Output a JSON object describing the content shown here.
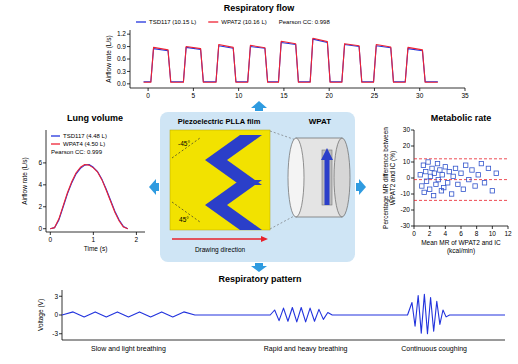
{
  "chart_data": [
    {
      "type": "line",
      "title": "Respiratory flow",
      "ylabel": "Airflow rate (L/s)",
      "x": [
        -0.5,
        0.3,
        0.6,
        2.2,
        2.5,
        3.9,
        4.2,
        5.8,
        6.1,
        7.5,
        7.8,
        9.4,
        9.7,
        11.0,
        11.3,
        12.9,
        13.2,
        14.4,
        14.7,
        16.3,
        16.6,
        17.9,
        18.2,
        19.8,
        20.1,
        21.4,
        21.7,
        23.3,
        23.6,
        24.9,
        25.2,
        26.8,
        27.1,
        28.4,
        28.7,
        30.3,
        30.6,
        32
      ],
      "xlim": [
        -2,
        35
      ],
      "xticks": [
        0,
        5,
        10,
        15,
        20,
        25,
        30,
        35
      ],
      "ylim": [
        -0.1,
        1.3
      ],
      "yticks": [
        {
          "value": 0,
          "label": "0.0"
        },
        0.3,
        0.6,
        0.9,
        1.2
      ],
      "legend": "top",
      "annotation": "Pearson CC: 0.998",
      "series": [
        {
          "name": "TSD117 (10.15 L)",
          "color": "#2233dd",
          "values": [
            0.05,
            0.05,
            0.85,
            0.8,
            0.05,
            0.05,
            0.88,
            0.83,
            0.05,
            0.05,
            0.92,
            0.86,
            0.05,
            0.05,
            0.9,
            0.86,
            0.05,
            0.05,
            1.0,
            0.95,
            0.05,
            0.05,
            1.08,
            1.0,
            0.05,
            0.05,
            0.95,
            0.9,
            0.05,
            0.05,
            0.92,
            0.87,
            0.05,
            0.05,
            0.85,
            0.8,
            0.05,
            0.05
          ]
        },
        {
          "name": "WPAT2 (10.16 L)",
          "color": "#ee2233",
          "values": [
            0.04,
            0.04,
            0.88,
            0.82,
            0.04,
            0.04,
            0.9,
            0.85,
            0.04,
            0.04,
            0.95,
            0.88,
            0.04,
            0.04,
            0.93,
            0.87,
            0.04,
            0.04,
            1.03,
            0.97,
            0.04,
            0.04,
            1.1,
            1.02,
            0.04,
            0.04,
            0.97,
            0.92,
            0.04,
            0.04,
            0.95,
            0.89,
            0.04,
            0.04,
            0.88,
            0.82,
            0.04,
            0.04
          ]
        }
      ]
    },
    {
      "type": "line",
      "title": "Lung volume",
      "xlabel": "Time (s)",
      "ylabel": "Airflow rate (L/s)",
      "x": [
        0,
        0.1,
        0.2,
        0.3,
        0.4,
        0.5,
        0.6,
        0.7,
        0.8,
        0.9,
        1.0,
        1.1,
        1.2,
        1.3,
        1.4,
        1.5,
        1.6,
        1.7,
        1.8
      ],
      "xlim": [
        -0.1,
        2.2
      ],
      "xticks": [
        0,
        1,
        2
      ],
      "ylim": [
        -0.3,
        9
      ],
      "yticks": [
        0,
        2,
        4,
        6
      ],
      "legend": "upper left",
      "annotation": "Pearson CC: 0.999",
      "series": [
        {
          "name": "TSD117 (4.48 L)",
          "color": "#2233dd",
          "values": [
            0,
            0.1,
            0.8,
            2.0,
            3.2,
            4.2,
            5.0,
            5.5,
            5.8,
            5.85,
            5.6,
            5.2,
            4.5,
            3.6,
            2.6,
            1.6,
            0.8,
            0.2,
            0
          ]
        },
        {
          "name": "WPAT4 (4.50 L)",
          "color": "#ee2233",
          "values": [
            0,
            0.1,
            0.9,
            2.1,
            3.3,
            4.3,
            5.1,
            5.6,
            5.85,
            5.8,
            5.55,
            5.15,
            4.45,
            3.5,
            2.5,
            1.5,
            0.7,
            0.15,
            0
          ]
        }
      ]
    },
    {
      "type": "scatter",
      "title": "Metabolic rate",
      "xlabel": "Mean MR of WPAT2 and IC (kcal/min)",
      "ylabel": "Percentage MR difference between WPAT2 and IC (%)",
      "x": [
        0.8,
        1.0,
        1.2,
        1.3,
        1.5,
        1.6,
        1.8,
        2.0,
        2.1,
        2.3,
        2.5,
        2.6,
        2.8,
        3.0,
        3.1,
        3.3,
        3.5,
        3.6,
        3.8,
        4.0,
        4.3,
        4.5,
        4.8,
        5.0,
        5.3,
        5.6,
        6.0,
        6.3,
        6.6,
        7.0,
        7.4,
        7.8,
        8.2,
        8.6,
        9.0,
        9.5,
        10.0,
        10.5
      ],
      "xlim": [
        0,
        12
      ],
      "xticks": [
        0,
        2,
        4,
        6,
        8,
        10,
        12
      ],
      "ylim": [
        -30,
        30
      ],
      "yticks": [
        -30,
        -20,
        -10,
        0,
        10,
        20,
        30
      ],
      "reference_lines": [
        12,
        -1,
        -14
      ],
      "series": [
        {
          "color": "#3355cc",
          "marker": "square",
          "values": [
            2,
            -5,
            8,
            -9,
            4,
            -2,
            10,
            -7,
            1,
            6,
            -11,
            3,
            -4,
            9,
            -1,
            5,
            -8,
            2,
            -6,
            7,
            -3,
            4,
            -10,
            1,
            6,
            -4,
            3,
            -7,
            8,
            -1,
            5,
            -5,
            2,
            9,
            -3,
            6,
            -8,
            3
          ]
        }
      ]
    },
    {
      "type": "line",
      "title": "Respiratory pattern",
      "ylabel": "Voltage (V)",
      "x": [
        0,
        2.5,
        5,
        7.5,
        10,
        12.5,
        15,
        17.5,
        20,
        22.5,
        25,
        27.5,
        30,
        35,
        40,
        45,
        47,
        48,
        49,
        50,
        51,
        52,
        53,
        54,
        55,
        56,
        57,
        58,
        59,
        60,
        61,
        70,
        78,
        79,
        79.7,
        80.4,
        81.1,
        81.8,
        82.5,
        83.2,
        83.9,
        84.6,
        85.3,
        86,
        86.7,
        87.5,
        93,
        100
      ],
      "xlim": [
        0,
        100
      ],
      "ylim": [
        -4,
        4
      ],
      "yticks": [
        -3,
        0,
        3
      ],
      "tick_labels": "y",
      "annotations": [
        {
          "text": "Slow and light breathing",
          "x": 15
        },
        {
          "text": "Rapid and heavy breathing",
          "x": 55
        },
        {
          "text": "Continuous coughing",
          "x": 84
        }
      ],
      "series": [
        {
          "color": "#2233dd",
          "values": [
            0,
            0.5,
            -0.3,
            0.5,
            -0.3,
            0.5,
            -0.3,
            0.5,
            -0.3,
            0.5,
            -0.3,
            0.5,
            0,
            0,
            0,
            0,
            0,
            0.8,
            -0.9,
            1.1,
            -1.0,
            1.2,
            -1.1,
            1.2,
            -1.1,
            1.1,
            -1.0,
            0.9,
            -0.7,
            0.4,
            0,
            0,
            0,
            2.0,
            -1.8,
            3.1,
            -2.9,
            3.3,
            -3.0,
            2.8,
            -2.6,
            2.2,
            -1.5,
            0.8,
            -0.3,
            0,
            0,
            0
          ]
        }
      ]
    }
  ],
  "diagram": {
    "title": "Piezoelectric PLLA film",
    "device": "WPAT",
    "angle_labels": [
      "-45°",
      "45°"
    ],
    "direction_label": "Drawing direction"
  }
}
